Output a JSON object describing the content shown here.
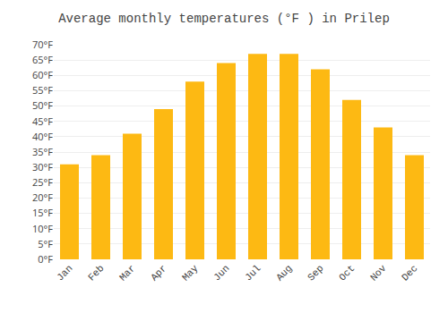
{
  "chart_data": {
    "type": "bar",
    "title": "Average monthly temperatures (°F ) in Prilep",
    "categories": [
      "Jan",
      "Feb",
      "Mar",
      "Apr",
      "May",
      "Jun",
      "Jul",
      "Aug",
      "Sep",
      "Oct",
      "Nov",
      "Dec"
    ],
    "values": [
      31,
      34,
      41,
      49,
      58,
      64,
      67,
      67,
      62,
      52,
      43,
      34
    ],
    "color": "#FDB913",
    "ylim": [
      0,
      70
    ],
    "yticks": [
      {
        "value": 0,
        "label": "0°F"
      },
      {
        "value": 5,
        "label": "5°F"
      },
      {
        "value": 10,
        "label": "10°F"
      },
      {
        "value": 15,
        "label": "15°F"
      },
      {
        "value": 20,
        "label": "20°F"
      },
      {
        "value": 25,
        "label": "25°F"
      },
      {
        "value": 30,
        "label": "30°F"
      },
      {
        "value": 35,
        "label": "35°F"
      },
      {
        "value": 40,
        "label": "40°F"
      },
      {
        "value": 45,
        "label": "45°F"
      },
      {
        "value": 50,
        "label": "50°F"
      },
      {
        "value": 55,
        "label": "55°F"
      },
      {
        "value": 60,
        "label": "60°F"
      },
      {
        "value": 65,
        "label": "65°F"
      },
      {
        "value": 70,
        "label": "70°F"
      }
    ],
    "grid": true
  }
}
